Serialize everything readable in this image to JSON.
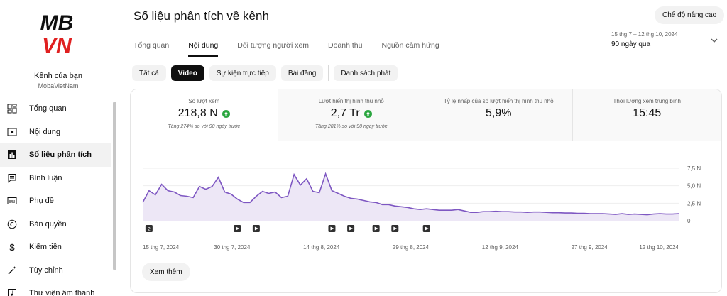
{
  "sidebar": {
    "logo_text": [
      "MB",
      "VN"
    ],
    "channel_name": "Kênh của bạn",
    "channel_handle": "MobaVietNam",
    "items": [
      {
        "label": "Tổng quan",
        "icon": "dashboard-icon"
      },
      {
        "label": "Nội dung",
        "icon": "content-icon"
      },
      {
        "label": "Số liệu phân tích",
        "icon": "analytics-icon",
        "active": true
      },
      {
        "label": "Bình luận",
        "icon": "comments-icon"
      },
      {
        "label": "Phụ đề",
        "icon": "subtitles-icon"
      },
      {
        "label": "Bản quyền",
        "icon": "copyright-icon"
      },
      {
        "label": "Kiếm tiền",
        "icon": "monetization-icon"
      },
      {
        "label": "Tùy chỉnh",
        "icon": "customization-icon"
      },
      {
        "label": "Thư viện âm thanh",
        "icon": "audio-library-icon"
      }
    ]
  },
  "header": {
    "title": "Số liệu phân tích về kênh",
    "advanced_mode": "Chế độ nâng cao",
    "tabs": [
      "Tổng quan",
      "Nội dung",
      "Đối tượng người xem",
      "Doanh thu",
      "Nguồn cảm hứng"
    ],
    "active_tab": 1,
    "date_range": "15 thg 7 – 12 thg 10, 2024",
    "date_label": "90 ngày qua"
  },
  "chips": [
    "Tất cả",
    "Video",
    "Sự kiện trực tiếp",
    "Bài đăng",
    "Danh sách phát"
  ],
  "metrics": [
    {
      "label": "Số lượt xem",
      "value": "218,8 N",
      "up": true,
      "note": "Tăng 274% so với 90 ngày trước"
    },
    {
      "label": "Lượt hiển thị hình thu nhỏ",
      "value": "2,7 Tr",
      "up": true,
      "note": "Tăng 281% so với 90 ngày trước"
    },
    {
      "label": "Tỷ lệ nhấp của số lượt hiển thị hình thu nhỏ",
      "value": "5,9%",
      "up": false,
      "note": ""
    },
    {
      "label": "Thời lượng xem trung bình",
      "value": "15:45",
      "up": false,
      "note": ""
    }
  ],
  "chart_data": {
    "type": "area",
    "ylabels": [
      "7,5 N",
      "5,0 N",
      "2,5 N",
      "0"
    ],
    "ylim": [
      0,
      7500
    ],
    "xlabels": [
      "15 thg 7, 2024",
      "30 thg 7, 2024",
      "14 thg 8, 2024",
      "29 thg 8, 2024",
      "12 thg 9, 2024",
      "27 thg 9, 2024",
      "12 thg 10, 2024"
    ],
    "color": "#7e57c2",
    "fill": "#ede7f6",
    "values": [
      2600,
      4300,
      3700,
      5200,
      4300,
      4100,
      3600,
      3500,
      3300,
      4900,
      4500,
      4900,
      6200,
      4100,
      3800,
      3100,
      2600,
      2600,
      3500,
      4200,
      3900,
      4100,
      3300,
      3500,
      6600,
      5100,
      6000,
      4200,
      4000,
      6700,
      4300,
      3900,
      3500,
      3200,
      3100,
      2900,
      2700,
      2600,
      2300,
      2300,
      2100,
      2000,
      1900,
      1700,
      1600,
      1700,
      1600,
      1500,
      1500,
      1500,
      1600,
      1400,
      1200,
      1200,
      1300,
      1300,
      1350,
      1300,
      1300,
      1250,
      1250,
      1200,
      1250,
      1250,
      1200,
      1150,
      1150,
      1100,
      1100,
      1050,
      1050,
      1000,
      1000,
      1000,
      950,
      900,
      1000,
      900,
      950,
      900,
      850,
      950,
      1000,
      950,
      950,
      1000
    ],
    "markers": [
      {
        "type": "number",
        "label": "2",
        "index": 1
      },
      {
        "type": "video",
        "index": 15
      },
      {
        "type": "video",
        "index": 18
      },
      {
        "type": "video",
        "index": 30
      },
      {
        "type": "video",
        "index": 33
      },
      {
        "type": "video",
        "index": 37
      },
      {
        "type": "video",
        "index": 40
      },
      {
        "type": "video",
        "index": 45
      }
    ]
  },
  "see_more": "Xem thêm"
}
